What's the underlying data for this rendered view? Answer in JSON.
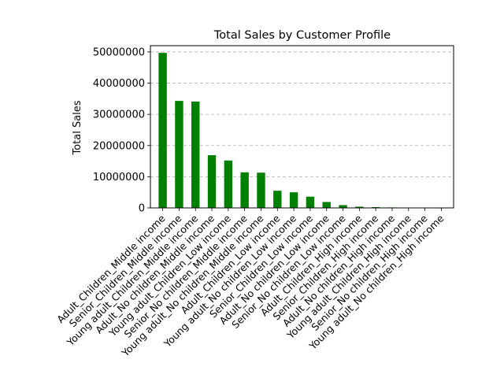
{
  "chart_data": {
    "type": "bar",
    "title": "Total Sales by Customer Profile",
    "xlabel": "",
    "ylabel": "Total Sales",
    "ylim": [
      0,
      52000000
    ],
    "yticks": [
      0,
      10000000,
      20000000,
      30000000,
      40000000,
      50000000
    ],
    "ytick_labels": [
      "0",
      "10000000",
      "20000000",
      "30000000",
      "40000000",
      "50000000"
    ],
    "grid": "y-dashed",
    "bar_color": "#008000",
    "grid_color": "#b0b0b0",
    "categories": [
      "Adult_Children_Middle income",
      "Senior_Children_Middle income",
      "Young adult_Children_Middle income",
      "Adult_No children_Middle income",
      "Young adult_Children_Low income",
      "Senior_No children_Middle income",
      "Young adult_No children_Middle income",
      "Adult_Children_Low income",
      "Young adult_No children_Low income",
      "Senior_Children_Low income",
      "Adult_No children_Low income",
      "Senior_No children_Low income",
      "Adult_Children_High income",
      "Senior_Children_High income",
      "Adult_No children_High income",
      "Young adult_Children_High income",
      "Senior_No children_High income",
      "Young adult_No children_High income"
    ],
    "values": [
      49700000,
      34300000,
      34100000,
      16900000,
      15200000,
      11400000,
      11300000,
      5500000,
      5000000,
      3600000,
      1900000,
      900000,
      400000,
      250000,
      150000,
      100000,
      30000,
      10000
    ]
  }
}
